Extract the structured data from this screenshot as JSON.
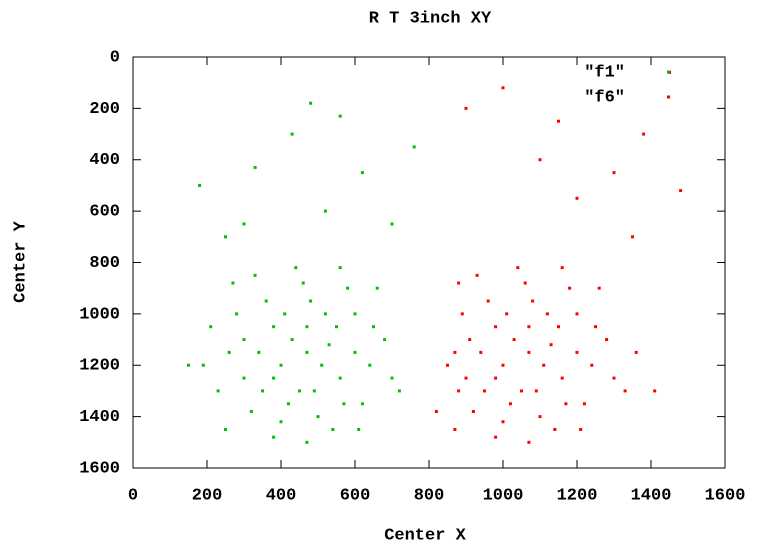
{
  "chart_data": {
    "type": "scatter",
    "title": "R T 3inch XY",
    "x_label": "Center X",
    "y_label": "Center Y",
    "xlim": [
      0,
      1600
    ],
    "xticks": [
      0,
      200,
      400,
      600,
      800,
      1000,
      1200,
      1400,
      1600
    ],
    "ylim": [
      1600,
      0
    ],
    "yticks": [
      0,
      200,
      400,
      600,
      800,
      1000,
      1200,
      1400,
      1600
    ],
    "legend": "top-right",
    "series": [
      {
        "name": "\"f1\"",
        "color": "#00c000",
        "x": [
          470,
          430,
          510,
          380,
          560,
          450,
          400,
          520,
          600,
          340,
          480,
          420,
          550,
          300,
          640,
          500,
          360,
          460,
          580,
          260,
          620,
          400,
          540,
          230,
          680,
          320,
          700,
          440,
          280,
          600,
          380,
          490,
          530,
          410,
          350,
          470,
          570,
          300,
          650,
          250,
          720,
          190,
          210,
          330,
          560,
          470,
          380,
          610,
          660,
          270,
          330,
          250,
          560,
          480,
          430,
          620,
          150,
          300,
          700,
          520,
          760,
          180
        ],
        "values": [
          1150,
          1100,
          1200,
          1050,
          1250,
          1300,
          1200,
          1000,
          1150,
          1150,
          950,
          1350,
          1050,
          1250,
          1200,
          1400,
          950,
          880,
          900,
          1150,
          1350,
          1420,
          1450,
          1300,
          1100,
          1380,
          1250,
          820,
          1000,
          1000,
          1250,
          1300,
          1120,
          1000,
          1300,
          1050,
          1350,
          1100,
          1050,
          1450,
          1300,
          1200,
          1050,
          850,
          820,
          1500,
          1480,
          1450,
          900,
          880,
          430,
          700,
          230,
          180,
          300,
          450,
          1200,
          650,
          650,
          600,
          350,
          500
        ]
      },
      {
        "name": "\"f6\"",
        "color": "#ff0000",
        "x": [
          1070,
          1030,
          1110,
          980,
          1160,
          1050,
          1000,
          1120,
          1200,
          940,
          1080,
          1020,
          1150,
          900,
          1240,
          1100,
          960,
          1060,
          1180,
          870,
          1220,
          1000,
          1140,
          880,
          1280,
          920,
          1300,
          1040,
          890,
          1200,
          980,
          1090,
          1130,
          1010,
          950,
          1070,
          1170,
          910,
          1250,
          870,
          1330,
          850,
          1360,
          930,
          1160,
          1070,
          980,
          1210,
          1260,
          880,
          1300,
          1380,
          1200,
          900,
          1000,
          1450,
          1480,
          1410,
          1100,
          820,
          1350,
          1150
        ],
        "values": [
          1150,
          1100,
          1200,
          1050,
          1250,
          1300,
          1200,
          1000,
          1150,
          1150,
          950,
          1350,
          1050,
          1250,
          1200,
          1400,
          950,
          880,
          900,
          1150,
          1350,
          1420,
          1450,
          1300,
          1100,
          1380,
          1250,
          820,
          1000,
          1000,
          1250,
          1300,
          1120,
          1000,
          1300,
          1050,
          1350,
          1100,
          1050,
          1450,
          1300,
          1200,
          1150,
          850,
          820,
          1500,
          1480,
          1450,
          900,
          880,
          450,
          300,
          550,
          200,
          120,
          60,
          520,
          1300,
          400,
          1380,
          700,
          250
        ]
      }
    ]
  }
}
